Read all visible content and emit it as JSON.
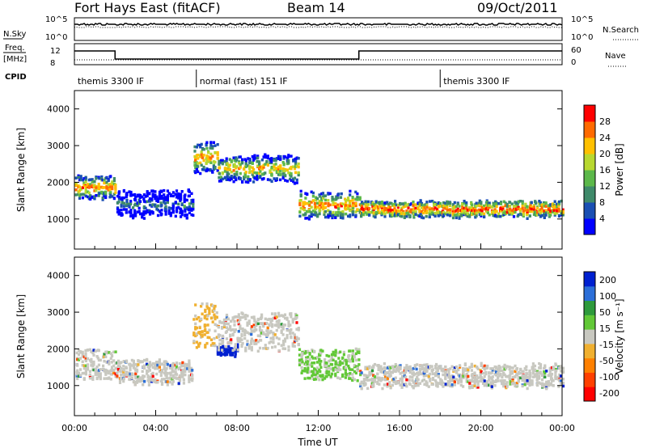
{
  "header": {
    "station": "Fort Hays East (fitACF)",
    "beam": "Beam 14",
    "date": "09/Oct/2011"
  },
  "status_panel": {
    "nsky_label": "N.Sky",
    "nsky_ticks": [
      "10^5",
      "10^0"
    ],
    "nsearch_label": "N.Search",
    "nsearch_ticks": [
      "10^5",
      "10^0"
    ],
    "freq_label": "Freq.",
    "freq_unit": "[MHz]",
    "freq_ticks": [
      "12",
      "8"
    ],
    "nave_label": "Nave",
    "nave_ticks": [
      "60",
      "0"
    ],
    "cpid_label": "CPID",
    "cpid_segments": [
      {
        "label": "themis 3300 IF",
        "start_h": 0,
        "end_h": 6
      },
      {
        "label": "normal (fast) 151 IF",
        "start_h": 6,
        "end_h": 18
      },
      {
        "label": "themis 3300 IF",
        "start_h": 18,
        "end_h": 24
      }
    ]
  },
  "chart_data": [
    {
      "type": "heatmap",
      "name": "power",
      "ylabel": "Slant Range [km]",
      "yticks": [
        1000,
        2000,
        3000,
        4000
      ],
      "ylim": [
        180,
        4500
      ],
      "xlim": [
        0,
        24
      ],
      "colorbar_label": "Power [dB]",
      "colorbar_ticks": [
        "4",
        "8",
        "12",
        "16",
        "20",
        "24",
        "28"
      ],
      "colorbar_colors": [
        "#0000ff",
        "#1a4fb3",
        "#3f8a6a",
        "#5cb84a",
        "#b8d830",
        "#ffc000",
        "#ff6a00",
        "#ff0000"
      ],
      "echo_bands": [
        {
          "start_h": 0.0,
          "end_h": 2.0,
          "center_km": 1900,
          "width_km": 300,
          "level": 0.85
        },
        {
          "start_h": 2.0,
          "end_h": 5.8,
          "center_km": 1450,
          "width_km": 350,
          "level": 0.35
        },
        {
          "start_h": 5.8,
          "end_h": 7.0,
          "center_km": 2700,
          "width_km": 400,
          "level": 0.8
        },
        {
          "start_h": 7.0,
          "end_h": 11.0,
          "center_km": 2400,
          "width_km": 350,
          "level": 0.75
        },
        {
          "start_h": 11.0,
          "end_h": 14.0,
          "center_km": 1400,
          "width_km": 350,
          "level": 0.85
        },
        {
          "start_h": 14.0,
          "end_h": 24.0,
          "center_km": 1300,
          "width_km": 200,
          "level": 0.95
        }
      ]
    },
    {
      "type": "heatmap",
      "name": "velocity",
      "ylabel": "Slant Range [km]",
      "yticks": [
        1000,
        2000,
        3000,
        4000
      ],
      "ylim": [
        180,
        4500
      ],
      "xlim": [
        0,
        24
      ],
      "xlabel": "Time UT",
      "xticks": [
        "00:00",
        "04:00",
        "08:00",
        "12:00",
        "16:00",
        "20:00",
        "00:00"
      ],
      "colorbar_label": "Velocity [m s⁻¹]",
      "colorbar_ticks": [
        "200",
        "100",
        "50",
        "15",
        "-15",
        "-50",
        "-100",
        "-200"
      ],
      "colorbar_colors": [
        "#0020d0",
        "#2c6fd8",
        "#2e9a3c",
        "#62c837",
        "#c8c8c0",
        "#f0b030",
        "#ff8000",
        "#ff4000",
        "#ff0000"
      ],
      "echo_bands": [
        {
          "start_h": 0.0,
          "end_h": 2.0,
          "center_km": 1600,
          "width_km": 400,
          "class": "ground"
        },
        {
          "start_h": 2.0,
          "end_h": 5.8,
          "center_km": 1400,
          "width_km": 300,
          "class": "ground"
        },
        {
          "start_h": 5.8,
          "end_h": 7.0,
          "center_km": 2700,
          "width_km": 600,
          "class": "away"
        },
        {
          "start_h": 7.0,
          "end_h": 8.0,
          "center_km": 2000,
          "width_km": 120,
          "class": "toward_strong"
        },
        {
          "start_h": 7.0,
          "end_h": 11.0,
          "center_km": 2500,
          "width_km": 500,
          "class": "ground"
        },
        {
          "start_h": 11.0,
          "end_h": 14.0,
          "center_km": 1600,
          "width_km": 400,
          "class": "toward"
        },
        {
          "start_h": 14.0,
          "end_h": 24.0,
          "center_km": 1300,
          "width_km": 300,
          "class": "ground"
        }
      ]
    }
  ]
}
